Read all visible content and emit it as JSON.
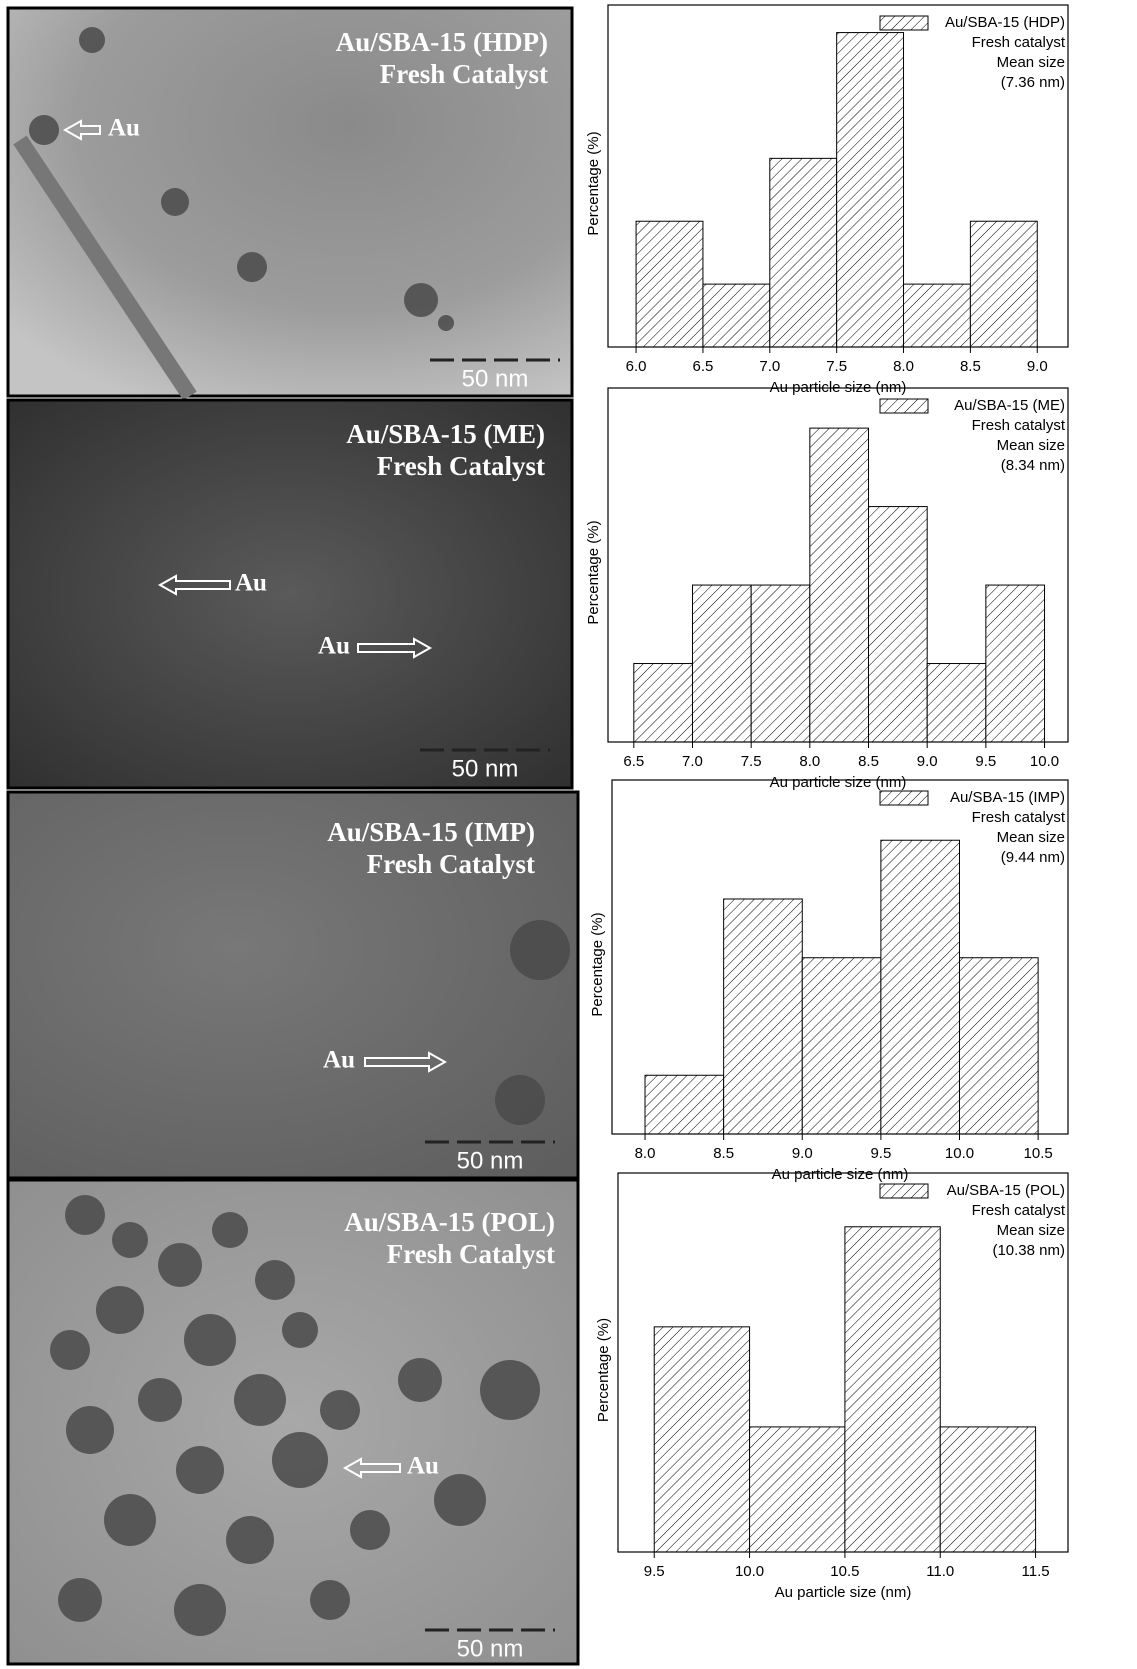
{
  "images": [
    {
      "title": "Au/SBA-15 (HDP)",
      "subtitle": "Fresh Catalyst",
      "labels": [
        "Au"
      ],
      "scale": "50 nm"
    },
    {
      "title": "Au/SBA-15 (ME)",
      "subtitle": "Fresh Catalyst",
      "labels": [
        "Au",
        "Au"
      ],
      "scale": "50 nm"
    },
    {
      "title": "Au/SBA-15 (IMP)",
      "subtitle": "Fresh Catalyst",
      "labels": [
        "Au"
      ],
      "scale": "50 nm"
    },
    {
      "title": "Au/SBA-15 (POL)",
      "subtitle": "Fresh Catalyst",
      "labels": [
        "Au"
      ],
      "scale": "50 nm"
    }
  ],
  "chart_data": [
    {
      "type": "histogram",
      "x_label": "Au particle size (nm)",
      "y_label": "Percentage (%)",
      "bins": [
        6.0,
        6.5,
        7.0,
        7.5,
        8.0,
        8.5,
        9.0
      ],
      "series": [
        {
          "name": "Au/SBA-15 (HDP)",
          "color": "#000000",
          "values": [
            2,
            1,
            3,
            5,
            1,
            2
          ]
        }
      ],
      "annotations": [
        "Fresh catalyst",
        "Mean size",
        "(7.36 nm)"
      ],
      "xlim": [
        5.79,
        9.23
      ],
      "ylim": [
        0,
        5.2
      ],
      "xticks": [
        {
          "value": 6,
          "label": "6.0"
        },
        6.5,
        {
          "value": 7,
          "label": "7.0"
        },
        7.5,
        {
          "value": 8,
          "label": "8.0"
        },
        8.5,
        {
          "value": 9,
          "label": "9.0"
        }
      ],
      "hatch": true
    },
    {
      "type": "histogram",
      "x_label": "Au particle size (nm)",
      "y_label": "Percentage (%)",
      "bins": [
        6.5,
        7.0,
        7.5,
        8.0,
        8.5,
        9.0,
        9.5,
        10.0
      ],
      "series": [
        {
          "name": "Au/SBA-15 (ME)",
          "color": "#000000",
          "values": [
            1,
            2,
            2,
            4,
            3,
            1,
            2
          ]
        }
      ],
      "annotations": [
        "Fresh catalyst",
        "Mean size",
        "(8.34 nm)"
      ],
      "xlim": [
        6.28,
        10.2
      ],
      "ylim": [
        0,
        4.32
      ],
      "xticks": [
        6.5,
        {
          "value": 7,
          "label": "7.0"
        },
        7.5,
        {
          "value": 8,
          "label": "8.0"
        },
        8.5,
        {
          "value": 9,
          "label": "9.0"
        },
        9.5,
        {
          "value": 10,
          "label": "10.0"
        }
      ],
      "hatch": true
    },
    {
      "type": "histogram",
      "x_label": "Au particle size (nm)",
      "y_label": "Percentage (%)",
      "bins": [
        8.0,
        8.5,
        9.0,
        9.5,
        10.0,
        10.5
      ],
      "series": [
        {
          "name": "Au/SBA-15 (IMP)",
          "color": "#000000",
          "values": [
            1,
            4,
            3,
            5,
            3
          ]
        }
      ],
      "annotations": [
        "Fresh catalyst",
        "Mean size",
        "(9.44 nm)"
      ],
      "xlim": [
        7.79,
        10.69
      ],
      "ylim": [
        0,
        5.77
      ],
      "xticks": [
        {
          "value": 8,
          "label": "8.0"
        },
        8.5,
        {
          "value": 9,
          "label": "9.0"
        },
        9.5,
        {
          "value": 10,
          "label": "10.0"
        },
        10.5
      ],
      "hatch": true
    },
    {
      "type": "histogram",
      "x_label": "Au particle size (nm)",
      "y_label": "Percentage (%)",
      "bins": [
        9.5,
        10.0,
        10.5,
        11.0,
        11.5
      ],
      "series": [
        {
          "name": "Au/SBA-15 (POL)",
          "color": "#000000",
          "values": [
            18,
            10,
            26,
            10
          ]
        }
      ],
      "annotations": [
        "Fresh catalyst",
        "Mean size",
        "(10.38 nm)"
      ],
      "xlim": [
        9.31,
        11.67
      ],
      "ylim": [
        0,
        29.1
      ],
      "xticks": [
        9.5,
        {
          "value": 10,
          "label": "10.0"
        },
        10.5,
        {
          "value": 11,
          "label": "11.0"
        },
        11.5
      ],
      "hatch": true
    }
  ]
}
